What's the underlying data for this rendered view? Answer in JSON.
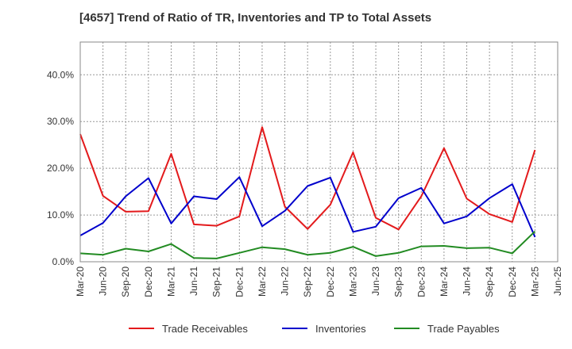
{
  "chart_data": {
    "type": "line",
    "title": "[4657]  Trend of Ratio of TR, Inventories and TP to Total Assets",
    "xlabel": "",
    "ylabel": "",
    "x": [
      "Mar-20",
      "Jun-20",
      "Sep-20",
      "Dec-20",
      "Mar-21",
      "Jun-21",
      "Sep-21",
      "Dec-21",
      "Mar-22",
      "Jun-22",
      "Sep-22",
      "Dec-22",
      "Mar-23",
      "Jun-23",
      "Sep-23",
      "Dec-23",
      "Mar-24",
      "Jun-24",
      "Sep-24",
      "Dec-24",
      "Mar-25"
    ],
    "x_ticks": [
      "Mar-20",
      "Jun-20",
      "Sep-20",
      "Dec-20",
      "Mar-21",
      "Jun-21",
      "Sep-21",
      "Dec-21",
      "Mar-22",
      "Jun-22",
      "Sep-22",
      "Dec-22",
      "Mar-23",
      "Jun-23",
      "Sep-23",
      "Dec-23",
      "Mar-24",
      "Jun-24",
      "Sep-24",
      "Dec-24",
      "Mar-25",
      "Jun-25"
    ],
    "y_ticks": [
      0,
      10,
      20,
      30,
      40
    ],
    "y_tick_labels": [
      "0.0%",
      "10.0%",
      "20.0%",
      "30.0%",
      "40.0%"
    ],
    "ylim": [
      0,
      47
    ],
    "grid": true,
    "legend_position": "bottom",
    "series": [
      {
        "name": "Trade Receivables",
        "color": "#e31a1c",
        "values": [
          27.3,
          14.1,
          10.7,
          10.8,
          23.1,
          8.0,
          7.7,
          9.7,
          28.8,
          11.8,
          7.0,
          12.2,
          23.4,
          9.4,
          6.9,
          14.0,
          24.3,
          13.5,
          10.2,
          8.5,
          23.9
        ]
      },
      {
        "name": "Inventories",
        "color": "#0000cc",
        "values": [
          5.6,
          8.3,
          14.0,
          17.9,
          8.2,
          14.0,
          13.4,
          18.1,
          7.6,
          10.9,
          16.2,
          18.0,
          6.4,
          7.5,
          13.6,
          15.8,
          8.2,
          9.7,
          13.6,
          16.6,
          5.3
        ]
      },
      {
        "name": "Trade Payables",
        "color": "#228b22",
        "values": [
          1.8,
          1.5,
          2.8,
          2.2,
          3.8,
          0.8,
          0.7,
          1.9,
          3.1,
          2.7,
          1.5,
          1.9,
          3.2,
          1.2,
          1.9,
          3.3,
          3.4,
          2.9,
          3.0,
          1.8,
          6.5
        ]
      }
    ]
  }
}
